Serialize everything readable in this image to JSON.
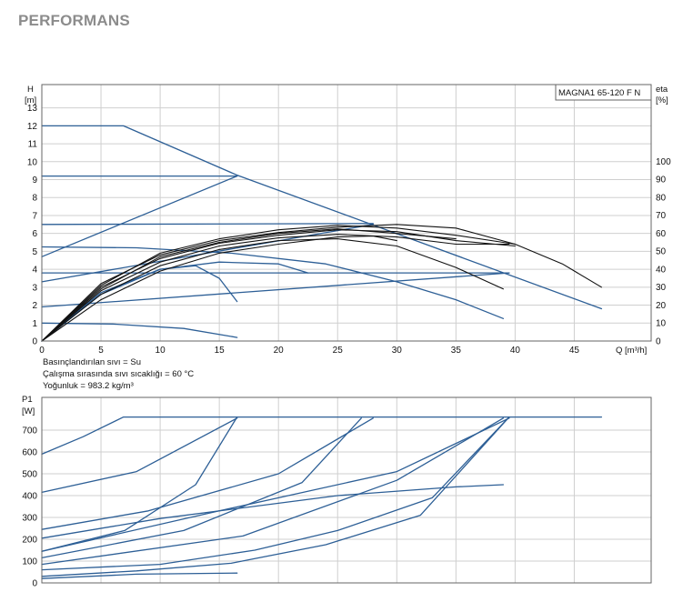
{
  "page": {
    "title": "PERFORMANS"
  },
  "notes": [
    "Basınçlandırılan sıvı = Su",
    "Çalışma sırasında sıvı sıcaklığı = 60 °C",
    "Yoğunluk = 983.2 kg/m³"
  ],
  "colors": {
    "curve_blue": "#2d5f96",
    "efficiency": "#111111",
    "grid": "#cfcfcf",
    "frame": "#666666"
  },
  "chart_data": [
    {
      "id": "head",
      "type": "line",
      "title": "MAGNA1 65-120 F N",
      "xlabel": "Q [m³/h]",
      "ylabel": "H [m]",
      "y2label": "eta [%]",
      "xlim": [
        0,
        51.5
      ],
      "ylim": [
        0,
        14.3
      ],
      "y2lim": [
        0,
        142.7
      ],
      "xticks": [
        0,
        5,
        10,
        15,
        20,
        25,
        30,
        35,
        40,
        45
      ],
      "yticks": [
        0,
        1,
        2,
        3,
        4,
        5,
        6,
        7,
        8,
        9,
        10,
        11,
        12,
        13
      ],
      "y2ticks": [
        0,
        10,
        20,
        30,
        40,
        50,
        60,
        70,
        80,
        90,
        100
      ],
      "grid": true,
      "series": [
        {
          "color": "#2d5f96",
          "points": [
            [
              0,
              12
            ],
            [
              6.9,
              12
            ],
            [
              16.5,
              9.25
            ],
            [
              47.3,
              1.8
            ]
          ]
        },
        {
          "color": "#2d5f96",
          "points": [
            [
              0,
              9.2
            ],
            [
              16.5,
              9.2
            ]
          ]
        },
        {
          "color": "#2d5f96",
          "points": [
            [
              0,
              6.5
            ],
            [
              28,
              6.55
            ]
          ]
        },
        {
          "color": "#2d5f96",
          "points": [
            [
              0,
              3.8
            ],
            [
              39.5,
              3.8
            ]
          ]
        },
        {
          "color": "#2d5f96",
          "points": [
            [
              0,
              4.7
            ],
            [
              16.5,
              9.2
            ]
          ]
        },
        {
          "color": "#2d5f96",
          "points": [
            [
              0,
              3.3
            ],
            [
              28,
              6.5
            ]
          ]
        },
        {
          "color": "#2d5f96",
          "points": [
            [
              0,
              1.9
            ],
            [
              39.5,
              3.8
            ]
          ]
        },
        {
          "color": "#2d5f96",
          "points": [
            [
              0,
              5.25
            ],
            [
              8,
              5.2
            ],
            [
              16,
              4.9
            ],
            [
              24,
              4.3
            ],
            [
              30,
              3.3
            ],
            [
              35,
              2.3
            ],
            [
              39,
              1.25
            ]
          ]
        },
        {
          "color": "#2d5f96",
          "points": [
            [
              0,
              1
            ],
            [
              6,
              0.95
            ],
            [
              12,
              0.7
            ],
            [
              16.5,
              0.2
            ]
          ]
        },
        {
          "color": "#2d5f96",
          "points": [
            [
              0,
              0
            ],
            [
              5,
              2.6
            ],
            [
              10,
              4.0
            ],
            [
              15,
              4.4
            ],
            [
              20,
              4.3
            ],
            [
              22.5,
              3.8
            ]
          ]
        },
        {
          "color": "#2d5f96",
          "points": [
            [
              0,
              0
            ],
            [
              5,
              2.7
            ],
            [
              10,
              4.0
            ],
            [
              13,
              4.2
            ],
            [
              15,
              3.5
            ],
            [
              16.5,
              2.2
            ]
          ]
        },
        {
          "color": "#111111",
          "points": [
            [
              0,
              0
            ],
            [
              5,
              3.2
            ],
            [
              10,
              4.8
            ],
            [
              15,
              5.6
            ],
            [
              20,
              6.05
            ],
            [
              25,
              6.35
            ],
            [
              30,
              6.5
            ],
            [
              35,
              6.3
            ],
            [
              40,
              5.4
            ],
            [
              44,
              4.3
            ],
            [
              47.3,
              3.0
            ]
          ]
        },
        {
          "color": "#111111",
          "points": [
            [
              0,
              0
            ],
            [
              5,
              3.0
            ],
            [
              10,
              4.6
            ],
            [
              15,
              5.45
            ],
            [
              20,
              5.9
            ],
            [
              25,
              6.2
            ],
            [
              30,
              6.1
            ],
            [
              35,
              5.6
            ],
            [
              40,
              5.3
            ]
          ]
        },
        {
          "color": "#111111",
          "points": [
            [
              0,
              0
            ],
            [
              5,
              2.8
            ],
            [
              10,
              4.4
            ],
            [
              15,
              5.3
            ],
            [
              20,
              5.75
            ],
            [
              25,
              5.95
            ],
            [
              30,
              5.8
            ],
            [
              35,
              5.4
            ],
            [
              39.5,
              5.4
            ]
          ]
        },
        {
          "color": "#111111",
          "points": [
            [
              0,
              0
            ],
            [
              5,
              2.6
            ],
            [
              10,
              4.2
            ],
            [
              15,
              5.1
            ],
            [
              20,
              5.6
            ],
            [
              25,
              5.7
            ],
            [
              30,
              5.3
            ],
            [
              35,
              4.1
            ],
            [
              39,
              2.9
            ]
          ]
        },
        {
          "color": "#111111",
          "points": [
            [
              0,
              0
            ],
            [
              5,
              2.3
            ],
            [
              10,
              3.9
            ],
            [
              15,
              4.9
            ],
            [
              20,
              5.4
            ],
            [
              25,
              5.8
            ],
            [
              28,
              5.85
            ],
            [
              30,
              5.6
            ]
          ]
        },
        {
          "color": "#111111",
          "points": [
            [
              0,
              0
            ],
            [
              5,
              3.1
            ],
            [
              10,
              4.9
            ],
            [
              15,
              5.7
            ],
            [
              20,
              6.2
            ],
            [
              25,
              6.45
            ],
            [
              30,
              6.3
            ],
            [
              35,
              5.9
            ],
            [
              40,
              5.4
            ]
          ]
        },
        {
          "color": "#111111",
          "points": [
            [
              0,
              0
            ],
            [
              5,
              2.9
            ],
            [
              10,
              4.7
            ],
            [
              15,
              5.5
            ],
            [
              20,
              6.0
            ],
            [
              25,
              6.25
            ],
            [
              30,
              6.0
            ],
            [
              35,
              5.7
            ]
          ]
        }
      ]
    },
    {
      "id": "power",
      "type": "line",
      "title": "",
      "xlabel": "",
      "ylabel": "P1 [W]",
      "xlim": [
        0,
        51.5
      ],
      "ylim": [
        0,
        850
      ],
      "yticks": [
        0,
        100,
        200,
        300,
        400,
        500,
        600,
        700
      ],
      "grid": true,
      "series": [
        {
          "color": "#2d5f96",
          "points": [
            [
              0,
              590
            ],
            [
              3.5,
              670
            ],
            [
              6.9,
              760
            ],
            [
              47.3,
              760
            ]
          ]
        },
        {
          "color": "#2d5f96",
          "points": [
            [
              0,
              415
            ],
            [
              8,
              510
            ],
            [
              16.5,
              755
            ]
          ]
        },
        {
          "color": "#2d5f96",
          "points": [
            [
              0,
              245
            ],
            [
              9,
              330
            ],
            [
              20,
              500
            ],
            [
              28,
              755
            ]
          ]
        },
        {
          "color": "#2d5f96",
          "points": [
            [
              0,
              145
            ],
            [
              15,
              330
            ],
            [
              30,
              510
            ],
            [
              39.5,
              755
            ]
          ]
        },
        {
          "color": "#2d5f96",
          "points": [
            [
              0,
              145
            ],
            [
              7,
              240
            ],
            [
              13,
              450
            ],
            [
              16.5,
              760
            ]
          ]
        },
        {
          "color": "#2d5f96",
          "points": [
            [
              0,
              115
            ],
            [
              12,
              240
            ],
            [
              22,
              460
            ],
            [
              27,
              755
            ]
          ]
        },
        {
          "color": "#2d5f96",
          "points": [
            [
              0,
              85
            ],
            [
              17,
              215
            ],
            [
              30,
              470
            ],
            [
              39,
              755
            ]
          ]
        },
        {
          "color": "#2d5f96",
          "points": [
            [
              0,
              205
            ],
            [
              10,
              295
            ],
            [
              25,
              400
            ],
            [
              35,
              440
            ],
            [
              39,
              450
            ]
          ]
        },
        {
          "color": "#2d5f96",
          "points": [
            [
              0,
              20
            ],
            [
              8,
              40
            ],
            [
              16.5,
              45
            ]
          ]
        },
        {
          "color": "#2d5f96",
          "points": [
            [
              0,
              30
            ],
            [
              8,
              55
            ],
            [
              16,
              90
            ],
            [
              24,
              175
            ],
            [
              32,
              310
            ],
            [
              39.5,
              760
            ]
          ]
        },
        {
          "color": "#2d5f96",
          "points": [
            [
              0,
              60
            ],
            [
              10,
              85
            ],
            [
              18,
              150
            ],
            [
              25,
              240
            ],
            [
              33,
              390
            ],
            [
              39.5,
              760
            ]
          ]
        }
      ]
    }
  ]
}
